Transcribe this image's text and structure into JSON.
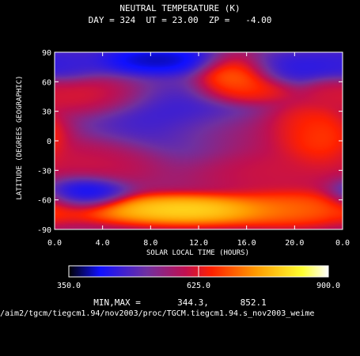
{
  "chart_data": {
    "type": "heatmap",
    "title": "NEUTRAL TEMPERATURE (K)",
    "subtitle": "DAY = 324  UT = 23.00  ZP =   -4.00",
    "xlabel": "SOLAR LOCAL TIME (HOURS)",
    "ylabel": "LATITUDE (DEGREES GEOGRAPHIC)",
    "x_ticks": [
      "0.0",
      "4.0",
      "8.0",
      "12.0",
      "16.0",
      "20.0",
      "0.0"
    ],
    "y_ticks": [
      "90",
      "60",
      "30",
      "0",
      "-30",
      "-60",
      "-90"
    ],
    "xlim": [
      0,
      24
    ],
    "ylim": [
      -90,
      90
    ],
    "colorbar": {
      "min_label": "350.0",
      "mid_label": "625.0",
      "max_label": "900.0",
      "min": 350,
      "max": 900
    },
    "blobs": [
      {
        "x": 8.5,
        "y": 82,
        "sx": 3.0,
        "sy": 9,
        "value": 360
      },
      {
        "x": 0.8,
        "y": 80,
        "sx": 1.8,
        "sy": 8,
        "value": 450
      },
      {
        "x": 21.0,
        "y": 75,
        "sx": 3.0,
        "sy": 10,
        "value": 420
      },
      {
        "x": 15.0,
        "y": 65,
        "sx": 1.6,
        "sy": 12,
        "value": 760
      },
      {
        "x": 16.0,
        "y": 50,
        "sx": 2.0,
        "sy": 8,
        "value": 680
      },
      {
        "x": 3.0,
        "y": 45,
        "sx": 2.5,
        "sy": 10,
        "value": 640
      },
      {
        "x": 23.0,
        "y": 50,
        "sx": 1.2,
        "sy": 8,
        "value": 620
      },
      {
        "x": 20.5,
        "y": 12,
        "sx": 2.0,
        "sy": 14,
        "value": 680
      },
      {
        "x": 15.5,
        "y": 8,
        "sx": 3.5,
        "sy": 12,
        "value": 600
      },
      {
        "x": 10.5,
        "y": 20,
        "sx": 4.0,
        "sy": 22,
        "value": 430
      },
      {
        "x": 18.0,
        "y": -28,
        "sx": 3.5,
        "sy": 15,
        "value": 620
      },
      {
        "x": 4.0,
        "y": -20,
        "sx": 3.0,
        "sy": 12,
        "value": 620
      },
      {
        "x": 2.5,
        "y": -52,
        "sx": 1.8,
        "sy": 9,
        "value": 380
      },
      {
        "x": 11.0,
        "y": -70,
        "sx": 4.5,
        "sy": 8,
        "value": 860
      },
      {
        "x": 20.0,
        "y": -68,
        "sx": 3.0,
        "sy": 10,
        "value": 720
      },
      {
        "x": 22.0,
        "y": 0,
        "sx": 1.5,
        "sy": 14,
        "value": 700
      }
    ],
    "base_value": 560,
    "minmax_label": "MIN,MAX =       344.3,      852.1",
    "source_path": "/aim2/tgcm/tiegcm1.94/nov2003/proc/TGCM.tiegcm1.94.s_nov2003_weime"
  }
}
